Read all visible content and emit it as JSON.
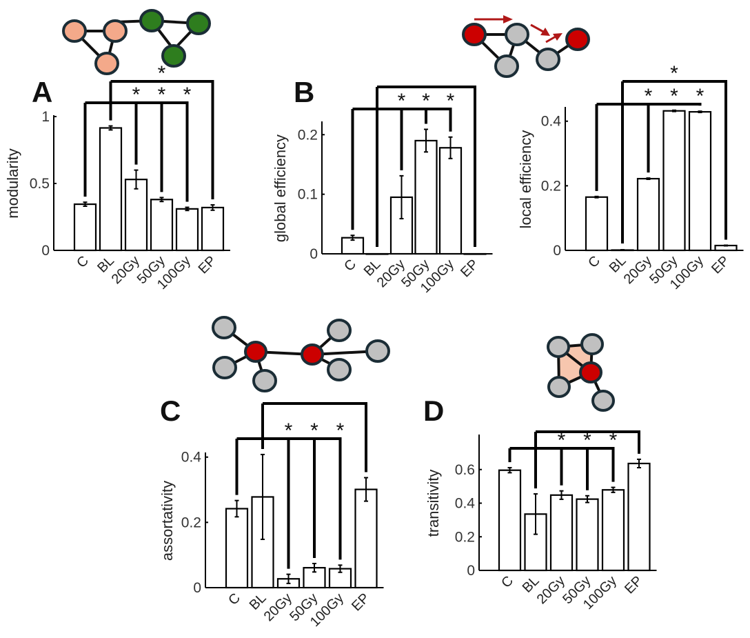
{
  "colors": {
    "bar_fill": "#ffffff",
    "ink": "#000000",
    "node_orange": "#f4a98a",
    "node_green": "#2e7d1e",
    "node_red": "#cc0000",
    "node_gray": "#c0c0c0",
    "node_stroke": "#1b2d36",
    "triangle_fill": "#f7c6ae",
    "arrow_red": "#b01818"
  },
  "chart_data": [
    {
      "panel": "A",
      "type": "bar",
      "ylabel": "modularity",
      "categories": [
        "C",
        "BL",
        "20Gy",
        "50Gy",
        "100Gy",
        "EP"
      ],
      "values": [
        0.345,
        0.915,
        0.53,
        0.38,
        0.31,
        0.32
      ],
      "errors": [
        0.015,
        0.015,
        0.07,
        0.015,
        0.012,
        0.02
      ],
      "ylim": [
        0,
        1
      ],
      "yticks": [
        "0",
        "0.5",
        "1"
      ],
      "ytick_values": [
        0,
        0.5,
        1
      ],
      "significance": [
        {
          "from": "C",
          "to": [
            "20Gy",
            "50Gy",
            "100Gy"
          ],
          "label": "*"
        },
        {
          "from": "BL",
          "to": [
            "EP"
          ],
          "label": "*"
        }
      ]
    },
    {
      "panel": "B",
      "type": "bar",
      "ylabel": "global efficiency",
      "categories": [
        "C",
        "BL",
        "20Gy",
        "50Gy",
        "100Gy",
        "EP"
      ],
      "values": [
        0.027,
        0.0,
        0.095,
        0.19,
        0.178,
        0.0
      ],
      "errors": [
        0.004,
        0.0,
        0.036,
        0.019,
        0.018,
        0.0
      ],
      "ylim": [
        0,
        0.22
      ],
      "yticks": [
        "0",
        "0.1",
        "0.2"
      ],
      "ytick_values": [
        0,
        0.1,
        0.2
      ],
      "significance": [
        {
          "from": "C",
          "to": [
            "20Gy",
            "50Gy",
            "100Gy"
          ],
          "label": "*"
        },
        {
          "from": "BL",
          "to": [
            "EP"
          ],
          "label": ""
        }
      ]
    },
    {
      "panel": "B",
      "type": "bar",
      "ylabel": "local efficiency",
      "categories": [
        "C",
        "BL",
        "20Gy",
        "50Gy",
        "100Gy",
        "EP"
      ],
      "values": [
        0.165,
        0.001,
        0.222,
        0.432,
        0.429,
        0.015
      ],
      "errors": [
        0.002,
        0.001,
        0.002,
        0.002,
        0.002,
        0.001
      ],
      "ylim": [
        0,
        0.44
      ],
      "yticks": [
        "0",
        "0.2",
        "0.4"
      ],
      "ytick_values": [
        0,
        0.2,
        0.4
      ],
      "significance": [
        {
          "from": "C",
          "to": [
            "20Gy",
            "50Gy",
            "100Gy"
          ],
          "label": "*"
        },
        {
          "from": "BL",
          "to": [
            "EP"
          ],
          "label": "*"
        }
      ]
    },
    {
      "panel": "C",
      "type": "bar",
      "ylabel": "assortativity",
      "categories": [
        "C",
        "BL",
        "20Gy",
        "50Gy",
        "100Gy",
        "EP"
      ],
      "values": [
        0.242,
        0.278,
        0.027,
        0.061,
        0.058,
        0.301
      ],
      "errors": [
        0.025,
        0.13,
        0.014,
        0.013,
        0.011,
        0.036
      ],
      "ylim": [
        0,
        0.41
      ],
      "yticks": [
        "0",
        "0.2",
        "0.4"
      ],
      "ytick_values": [
        0,
        0.2,
        0.4
      ],
      "significance": [
        {
          "from": "C",
          "to": [
            "20Gy",
            "50Gy",
            "100Gy"
          ],
          "label": "*"
        },
        {
          "from": "BL",
          "to": [
            "EP"
          ],
          "label": ""
        }
      ]
    },
    {
      "panel": "D",
      "type": "bar",
      "ylabel": "transitivity",
      "categories": [
        "C",
        "BL",
        "20Gy",
        "50Gy",
        "100Gy",
        "EP"
      ],
      "values": [
        0.596,
        0.335,
        0.448,
        0.424,
        0.479,
        0.636
      ],
      "errors": [
        0.015,
        0.12,
        0.025,
        0.02,
        0.015,
        0.025
      ],
      "ylim": [
        0,
        0.8
      ],
      "yticks": [
        "0",
        "0.2",
        "0.4",
        "0.6"
      ],
      "ytick_values": [
        0,
        0.2,
        0.4,
        0.6
      ],
      "significance": [
        {
          "from": "C",
          "to": [
            "20Gy",
            "50Gy",
            "100Gy"
          ],
          "label": "*"
        },
        {
          "from": "BL",
          "to": [
            "EP"
          ],
          "label": ""
        }
      ]
    }
  ],
  "panel_labels": [
    "A",
    "B",
    "C",
    "D"
  ]
}
